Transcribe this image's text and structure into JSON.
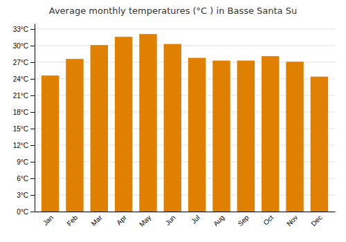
{
  "chart_data": {
    "type": "bar",
    "title": "Average monthly temperatures (°C ) in Basse Santa Su",
    "categories": [
      "Jan",
      "Feb",
      "Mar",
      "Apr",
      "May",
      "Jun",
      "Jul",
      "Aug",
      "Sep",
      "Oct",
      "Nov",
      "Dec"
    ],
    "values": [
      24.6,
      27.6,
      30.1,
      31.6,
      32.1,
      30.3,
      27.8,
      27.3,
      27.3,
      28.1,
      27.1,
      24.4
    ],
    "color": "#E08000",
    "ylim": [
      0,
      34
    ],
    "yticks": [
      {
        "value": 0,
        "label": "0°C"
      },
      {
        "value": 3,
        "label": "3°C"
      },
      {
        "value": 6,
        "label": "6°C"
      },
      {
        "value": 9,
        "label": "9°C"
      },
      {
        "value": 12,
        "label": "12°C"
      },
      {
        "value": 15,
        "label": "15°C"
      },
      {
        "value": 18,
        "label": "18°C"
      },
      {
        "value": 21,
        "label": "21°C"
      },
      {
        "value": 24,
        "label": "24°C"
      },
      {
        "value": 27,
        "label": "27°C"
      },
      {
        "value": 30,
        "label": "30°C"
      },
      {
        "value": 33,
        "label": "33°C"
      }
    ],
    "grid": true
  }
}
